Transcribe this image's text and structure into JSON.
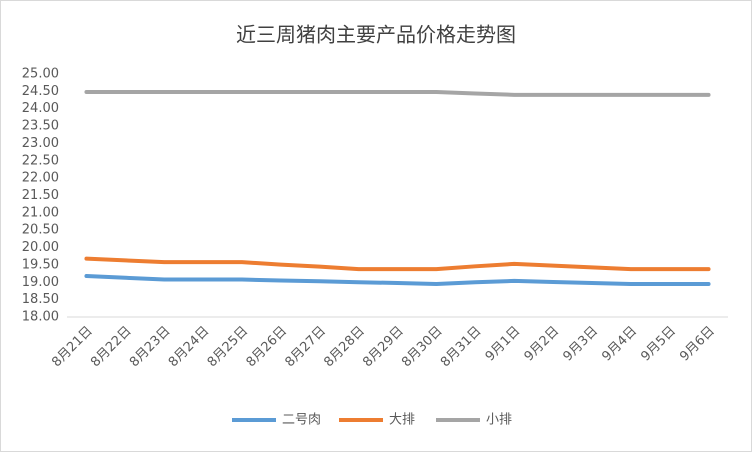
{
  "chart_data": {
    "type": "line",
    "title": "近三周猪肉主要产品价格走势图",
    "categories": [
      "8月21日",
      "8月22日",
      "8月23日",
      "8月24日",
      "8月25日",
      "8月26日",
      "8月27日",
      "8月28日",
      "8月29日",
      "8月30日",
      "8月31日",
      "9月1日",
      "9月2日",
      "9月3日",
      "9月4日",
      "9月5日",
      "9月6日"
    ],
    "series": [
      {
        "name": "二号肉",
        "color": "#5b9bd5",
        "values": [
          19.18,
          19.13,
          19.08,
          19.08,
          19.08,
          19.05,
          19.03,
          19.0,
          18.98,
          18.95,
          19.0,
          19.04,
          19.01,
          18.98,
          18.95,
          18.95,
          18.95
        ]
      },
      {
        "name": "大排",
        "color": "#ed7d31",
        "values": [
          19.68,
          19.63,
          19.58,
          19.58,
          19.58,
          19.51,
          19.45,
          19.38,
          19.38,
          19.38,
          19.46,
          19.53,
          19.48,
          19.43,
          19.38,
          19.38,
          19.38
        ]
      },
      {
        "name": "小排",
        "color": "#a5a5a5",
        "values": [
          24.48,
          24.48,
          24.48,
          24.48,
          24.48,
          24.48,
          24.48,
          24.48,
          24.48,
          24.48,
          24.44,
          24.4,
          24.4,
          24.4,
          24.4,
          24.4,
          24.4
        ]
      }
    ],
    "ylim": [
      18,
      25
    ],
    "yticks": [
      {
        "value": 18,
        "label": "18.00"
      },
      {
        "value": 18.5,
        "label": "18.50"
      },
      {
        "value": 19,
        "label": "19.00"
      },
      {
        "value": 19.5,
        "label": "19.50"
      },
      {
        "value": 20,
        "label": "20.00"
      },
      {
        "value": 20.5,
        "label": "20.50"
      },
      {
        "value": 21,
        "label": "21.00"
      },
      {
        "value": 21.5,
        "label": "21.50"
      },
      {
        "value": 22,
        "label": "22.00"
      },
      {
        "value": 22.5,
        "label": "22.50"
      },
      {
        "value": 23,
        "label": "23.00"
      },
      {
        "value": 23.5,
        "label": "23.50"
      },
      {
        "value": 24,
        "label": "24.00"
      },
      {
        "value": 24.5,
        "label": "24.50"
      },
      {
        "value": 25,
        "label": "25.00"
      }
    ],
    "grid": false,
    "legend": "bottom"
  }
}
